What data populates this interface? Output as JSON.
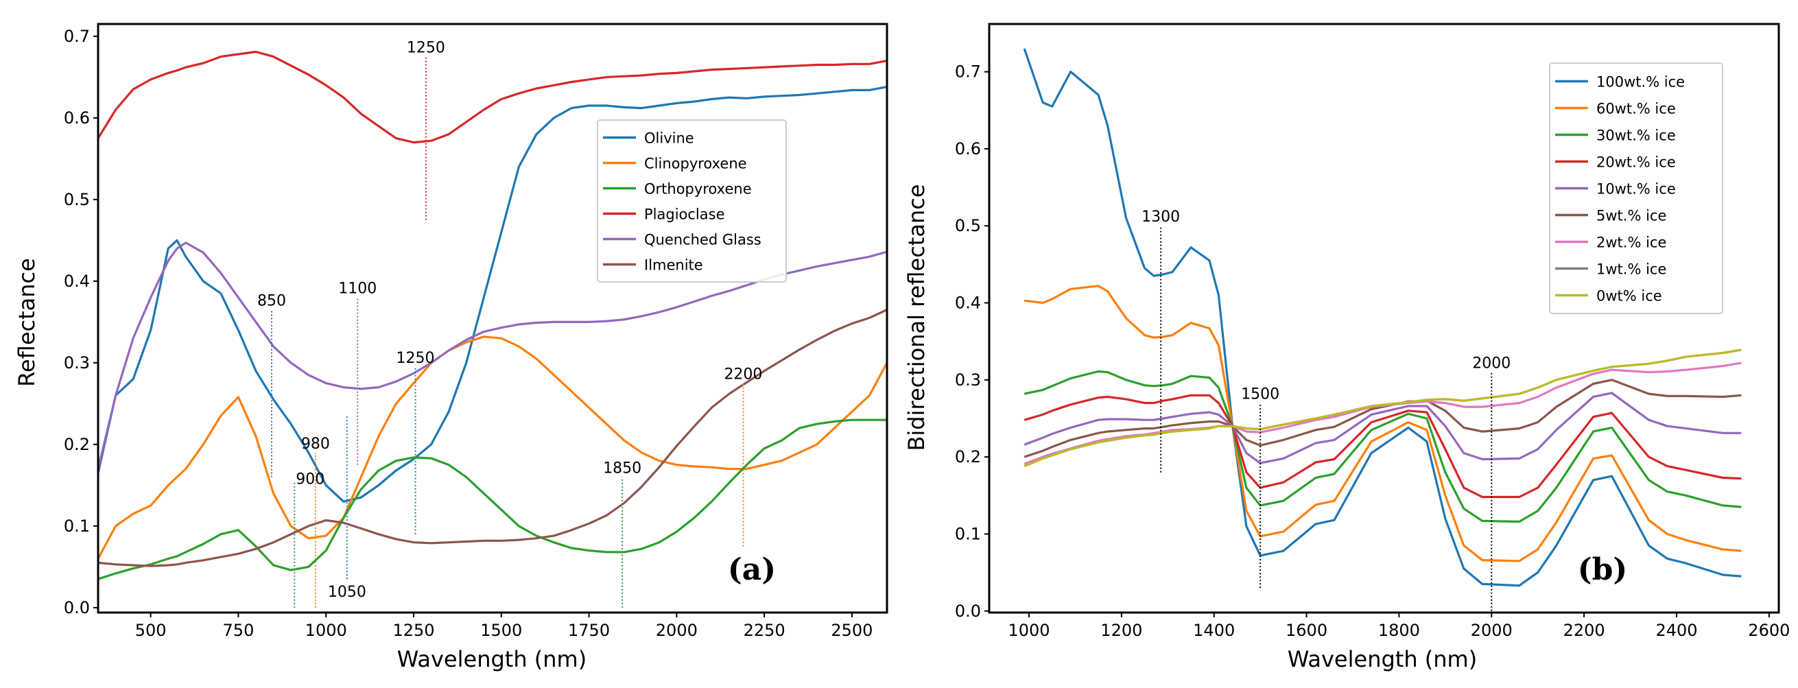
{
  "chart_data": [
    {
      "type": "line",
      "panel_label": "(a)",
      "xlabel": "Wavelength (nm)",
      "ylabel": "Reflectance",
      "xlim": [
        350,
        2600
      ],
      "ylim": [
        -0.006,
        0.715
      ],
      "xticks": [
        500,
        750,
        1000,
        1250,
        1500,
        1750,
        2000,
        2250,
        2500
      ],
      "yticks": [
        "0.0",
        "0.1",
        "0.2",
        "0.3",
        "0.4",
        "0.5",
        "0.6",
        "0.7"
      ],
      "legend_position": "upper-right",
      "x": [
        350,
        400,
        450,
        500,
        550,
        575,
        600,
        650,
        700,
        750,
        800,
        850,
        900,
        950,
        1000,
        1050,
        1100,
        1150,
        1200,
        1250,
        1300,
        1350,
        1400,
        1450,
        1500,
        1550,
        1600,
        1650,
        1700,
        1750,
        1800,
        1850,
        1900,
        1950,
        2000,
        2050,
        2100,
        2150,
        2200,
        2250,
        2300,
        2350,
        2400,
        2450,
        2500,
        2550,
        2600
      ],
      "series": [
        {
          "name": "Olivine",
          "color": "#1f77b4",
          "values": [
            0.165,
            0.26,
            0.28,
            0.34,
            0.44,
            0.45,
            0.43,
            0.4,
            0.385,
            0.34,
            0.29,
            0.255,
            0.225,
            0.19,
            0.15,
            0.13,
            0.135,
            0.15,
            0.168,
            0.182,
            0.2,
            0.24,
            0.3,
            0.38,
            0.46,
            0.54,
            0.58,
            0.6,
            0.612,
            0.615,
            0.615,
            0.613,
            0.612,
            0.615,
            0.618,
            0.62,
            0.623,
            0.625,
            0.624,
            0.626,
            0.627,
            0.628,
            0.63,
            0.632,
            0.634,
            0.634,
            0.638
          ]
        },
        {
          "name": "Clinopyroxene",
          "color": "#ff7f0e",
          "values": [
            0.06,
            0.1,
            0.115,
            0.125,
            0.15,
            0.16,
            0.17,
            0.2,
            0.235,
            0.258,
            0.21,
            0.14,
            0.1,
            0.085,
            0.088,
            0.11,
            0.16,
            0.21,
            0.25,
            0.275,
            0.3,
            0.315,
            0.325,
            0.332,
            0.33,
            0.32,
            0.305,
            0.285,
            0.265,
            0.245,
            0.225,
            0.205,
            0.19,
            0.18,
            0.175,
            0.173,
            0.172,
            0.17,
            0.17,
            0.175,
            0.18,
            0.19,
            0.2,
            0.22,
            0.24,
            0.26,
            0.3
          ]
        },
        {
          "name": "Orthopyroxene",
          "color": "#2ca02c",
          "values": [
            0.035,
            0.042,
            0.048,
            0.053,
            0.06,
            0.063,
            0.068,
            0.078,
            0.09,
            0.095,
            0.075,
            0.052,
            0.046,
            0.05,
            0.07,
            0.11,
            0.145,
            0.168,
            0.18,
            0.184,
            0.183,
            0.175,
            0.16,
            0.14,
            0.12,
            0.1,
            0.088,
            0.08,
            0.073,
            0.07,
            0.068,
            0.068,
            0.072,
            0.08,
            0.093,
            0.11,
            0.13,
            0.153,
            0.175,
            0.195,
            0.205,
            0.22,
            0.225,
            0.228,
            0.23,
            0.23,
            0.23
          ]
        },
        {
          "name": "Plagioclase",
          "color": "#d62728",
          "values": [
            0.575,
            0.61,
            0.635,
            0.647,
            0.655,
            0.658,
            0.662,
            0.667,
            0.675,
            0.678,
            0.681,
            0.675,
            0.664,
            0.653,
            0.64,
            0.625,
            0.605,
            0.59,
            0.575,
            0.57,
            0.572,
            0.58,
            0.595,
            0.61,
            0.623,
            0.63,
            0.636,
            0.64,
            0.644,
            0.647,
            0.65,
            0.651,
            0.652,
            0.654,
            0.655,
            0.657,
            0.659,
            0.66,
            0.661,
            0.662,
            0.663,
            0.664,
            0.665,
            0.665,
            0.666,
            0.666,
            0.67
          ]
        },
        {
          "name": "Quenched Glass",
          "color": "#9467bd",
          "values": [
            0.17,
            0.26,
            0.33,
            0.38,
            0.425,
            0.44,
            0.447,
            0.435,
            0.41,
            0.38,
            0.35,
            0.32,
            0.3,
            0.285,
            0.275,
            0.27,
            0.268,
            0.27,
            0.277,
            0.287,
            0.3,
            0.315,
            0.328,
            0.338,
            0.343,
            0.347,
            0.349,
            0.35,
            0.35,
            0.35,
            0.351,
            0.353,
            0.357,
            0.362,
            0.368,
            0.375,
            0.382,
            0.388,
            0.395,
            0.402,
            0.408,
            0.413,
            0.418,
            0.422,
            0.426,
            0.43,
            0.436
          ]
        },
        {
          "name": "Ilmenite",
          "color": "#8c564b",
          "values": [
            0.055,
            0.053,
            0.052,
            0.051,
            0.052,
            0.053,
            0.055,
            0.058,
            0.062,
            0.066,
            0.072,
            0.08,
            0.09,
            0.1,
            0.107,
            0.104,
            0.097,
            0.09,
            0.084,
            0.08,
            0.079,
            0.08,
            0.081,
            0.082,
            0.082,
            0.083,
            0.085,
            0.088,
            0.095,
            0.103,
            0.113,
            0.128,
            0.148,
            0.172,
            0.198,
            0.222,
            0.245,
            0.262,
            0.276,
            0.29,
            0.303,
            0.316,
            0.328,
            0.339,
            0.348,
            0.355,
            0.365
          ]
        }
      ],
      "annotations": [
        {
          "label": "1250",
          "x": 1285,
          "y0": 0.475,
          "y1": 0.675,
          "color": "#d62728",
          "label_pos": "top"
        },
        {
          "label": "850",
          "x": 845,
          "y0": 0.16,
          "y1": 0.365,
          "color": "#1f77b4",
          "label_pos": "top"
        },
        {
          "label": "1100",
          "x": 1090,
          "y0": 0.175,
          "y1": 0.38,
          "color": "#9467bd",
          "label_pos": "top"
        },
        {
          "label": "1250",
          "x": 1255,
          "y0": 0.09,
          "y1": 0.295,
          "color": "#1f77b4",
          "label_pos": "top"
        },
        {
          "label": "980",
          "x": 970,
          "y0": 0.0,
          "y1": 0.19,
          "color": "#ff7f0e",
          "label_pos": "top"
        },
        {
          "label": "900",
          "x": 910,
          "y0": 0.0,
          "y1": 0.155,
          "color": "#2ca02c",
          "label_pos": "top-right"
        },
        {
          "label": "1050",
          "x": 1060,
          "y0": 0.035,
          "y1": 0.235,
          "color": "#1f77b4",
          "label_pos": "bottom"
        },
        {
          "label": "1850",
          "x": 1845,
          "y0": 0.0,
          "y1": 0.16,
          "color": "#2ca02c",
          "label_pos": "top"
        },
        {
          "label": "2200",
          "x": 2190,
          "y0": 0.075,
          "y1": 0.275,
          "color": "#ff7f0e",
          "label_pos": "top"
        }
      ]
    },
    {
      "type": "line",
      "panel_label": "(b)",
      "xlabel": "Wavelength (nm)",
      "ylabel": "Bidirectional reflectance",
      "xlim": [
        914,
        2621
      ],
      "ylim": [
        -0.002,
        0.762
      ],
      "xticks": [
        1000,
        1200,
        1400,
        1600,
        1800,
        2000,
        2200,
        2400,
        2600
      ],
      "yticks": [
        "0.0",
        "0.1",
        "0.2",
        "0.3",
        "0.4",
        "0.5",
        "0.6",
        "0.7"
      ],
      "legend_position": "upper-right",
      "x": [
        990,
        1030,
        1050,
        1090,
        1150,
        1170,
        1210,
        1250,
        1270,
        1290,
        1310,
        1350,
        1390,
        1410,
        1440,
        1470,
        1500,
        1550,
        1620,
        1660,
        1740,
        1820,
        1860,
        1900,
        1940,
        1980,
        2060,
        2100,
        2140,
        2220,
        2260,
        2340,
        2380,
        2420,
        2500,
        2540
      ],
      "series": [
        {
          "name": "100wt.% ice",
          "color": "#1f77b4",
          "values": [
            0.73,
            0.66,
            0.655,
            0.7,
            0.67,
            0.63,
            0.51,
            0.445,
            0.435,
            0.437,
            0.44,
            0.472,
            0.455,
            0.41,
            0.24,
            0.11,
            0.072,
            0.078,
            0.113,
            0.118,
            0.205,
            0.238,
            0.22,
            0.12,
            0.055,
            0.035,
            0.033,
            0.05,
            0.085,
            0.17,
            0.175,
            0.085,
            0.068,
            0.062,
            0.047,
            0.045
          ]
        },
        {
          "name": "60wt.% ice",
          "color": "#ff7f0e",
          "values": [
            0.403,
            0.4,
            0.405,
            0.418,
            0.422,
            0.415,
            0.38,
            0.358,
            0.355,
            0.356,
            0.358,
            0.374,
            0.367,
            0.345,
            0.24,
            0.13,
            0.097,
            0.103,
            0.138,
            0.143,
            0.22,
            0.245,
            0.235,
            0.15,
            0.085,
            0.066,
            0.065,
            0.08,
            0.115,
            0.198,
            0.202,
            0.118,
            0.1,
            0.092,
            0.08,
            0.078
          ]
        },
        {
          "name": "30wt.% ice",
          "color": "#2ca02c",
          "values": [
            0.282,
            0.287,
            0.292,
            0.302,
            0.311,
            0.31,
            0.3,
            0.293,
            0.292,
            0.293,
            0.295,
            0.305,
            0.303,
            0.29,
            0.24,
            0.16,
            0.137,
            0.143,
            0.173,
            0.178,
            0.235,
            0.256,
            0.25,
            0.18,
            0.133,
            0.117,
            0.116,
            0.13,
            0.16,
            0.233,
            0.238,
            0.17,
            0.155,
            0.15,
            0.137,
            0.135
          ]
        },
        {
          "name": "20wt.% ice",
          "color": "#d62728",
          "values": [
            0.248,
            0.255,
            0.26,
            0.268,
            0.277,
            0.278,
            0.275,
            0.27,
            0.27,
            0.273,
            0.275,
            0.28,
            0.28,
            0.27,
            0.24,
            0.18,
            0.16,
            0.167,
            0.193,
            0.197,
            0.245,
            0.26,
            0.258,
            0.21,
            0.16,
            0.148,
            0.148,
            0.16,
            0.19,
            0.252,
            0.257,
            0.2,
            0.188,
            0.183,
            0.173,
            0.172
          ]
        },
        {
          "name": "10wt.% ice",
          "color": "#9467bd",
          "values": [
            0.216,
            0.225,
            0.23,
            0.238,
            0.248,
            0.249,
            0.249,
            0.248,
            0.248,
            0.25,
            0.252,
            0.256,
            0.258,
            0.255,
            0.24,
            0.205,
            0.192,
            0.198,
            0.218,
            0.222,
            0.255,
            0.266,
            0.266,
            0.24,
            0.205,
            0.197,
            0.198,
            0.21,
            0.235,
            0.278,
            0.283,
            0.248,
            0.24,
            0.237,
            0.231,
            0.231
          ]
        },
        {
          "name": "5wt.% ice",
          "color": "#8c564b",
          "values": [
            0.2,
            0.208,
            0.213,
            0.222,
            0.231,
            0.233,
            0.235,
            0.237,
            0.237,
            0.239,
            0.241,
            0.244,
            0.246,
            0.246,
            0.24,
            0.222,
            0.215,
            0.222,
            0.235,
            0.239,
            0.262,
            0.272,
            0.273,
            0.26,
            0.238,
            0.233,
            0.237,
            0.245,
            0.265,
            0.295,
            0.3,
            0.282,
            0.279,
            0.279,
            0.278,
            0.28
          ]
        },
        {
          "name": "2wt.% ice",
          "color": "#e377c2",
          "values": [
            0.191,
            0.2,
            0.204,
            0.211,
            0.221,
            0.223,
            0.227,
            0.229,
            0.231,
            0.233,
            0.235,
            0.236,
            0.238,
            0.24,
            0.24,
            0.233,
            0.232,
            0.238,
            0.248,
            0.252,
            0.265,
            0.27,
            0.272,
            0.27,
            0.265,
            0.265,
            0.27,
            0.278,
            0.29,
            0.308,
            0.313,
            0.31,
            0.311,
            0.313,
            0.318,
            0.322
          ]
        },
        {
          "name": "1wt.% ice",
          "color": "#7f7f7f",
          "values": [
            0.188,
            0.198,
            0.202,
            0.21,
            0.219,
            0.221,
            0.225,
            0.228,
            0.229,
            0.231,
            0.233,
            0.235,
            0.237,
            0.24,
            0.24,
            0.237,
            0.236,
            0.242,
            0.25,
            0.255,
            0.266,
            0.271,
            0.274,
            0.275,
            0.273,
            0.276,
            0.282,
            0.29,
            0.3,
            0.312,
            0.317,
            0.321,
            0.325,
            0.33,
            0.335,
            0.339
          ]
        },
        {
          "name": "0wt% ice",
          "color": "#bcbd22",
          "values": [
            0.188,
            0.198,
            0.202,
            0.21,
            0.219,
            0.221,
            0.225,
            0.228,
            0.229,
            0.231,
            0.233,
            0.235,
            0.237,
            0.24,
            0.24,
            0.237,
            0.236,
            0.242,
            0.25,
            0.255,
            0.266,
            0.271,
            0.274,
            0.275,
            0.273,
            0.276,
            0.282,
            0.29,
            0.3,
            0.312,
            0.317,
            0.321,
            0.325,
            0.33,
            0.335,
            0.339
          ]
        }
      ],
      "annotations": [
        {
          "label": "1300",
          "x": 1285,
          "y0": 0.18,
          "y1": 0.5,
          "color": "#000000",
          "label_pos": "top"
        },
        {
          "label": "1500",
          "x": 1500,
          "y0": 0.03,
          "y1": 0.27,
          "color": "#000000",
          "label_pos": "top"
        },
        {
          "label": "2000",
          "x": 2000,
          "y0": 0.0,
          "y1": 0.31,
          "color": "#000000",
          "label_pos": "top"
        }
      ]
    }
  ]
}
